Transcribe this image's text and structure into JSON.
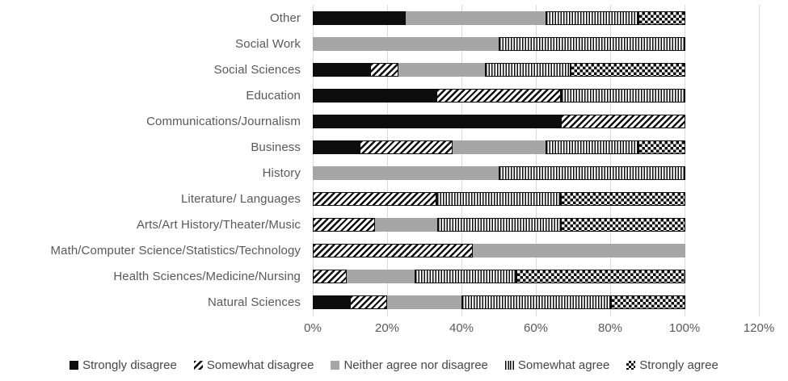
{
  "chart_data": {
    "type": "bar",
    "orientation": "horizontal",
    "stacked": true,
    "title": "",
    "xlabel": "",
    "ylabel": "",
    "x_axis": {
      "ticks": [
        "0%",
        "20%",
        "40%",
        "60%",
        "80%",
        "100%",
        "120%"
      ],
      "min": 0,
      "max": 120,
      "tick_step": 20,
      "unit": "percent"
    },
    "grid": true,
    "legend_position": "bottom",
    "categories": [
      "Other",
      "Social Work",
      "Social Sciences",
      "Education",
      "Communications/Journalism",
      "Business",
      "History",
      "Literature/ Languages",
      "Arts/Art History/Theater/Music",
      "Math/Computer Science/Statistics/Technology",
      "Health Sciences/Medicine/Nursing",
      "Natural Sciences"
    ],
    "series": [
      {
        "name": "Strongly disagree",
        "pattern": "solid-black",
        "values": [
          25,
          0,
          15.4,
          33.3,
          66.7,
          12.5,
          0,
          0,
          0,
          0,
          0,
          10
        ]
      },
      {
        "name": "Somewhat disagree",
        "pattern": "diagonal-stripes",
        "values": [
          0,
          0,
          7.7,
          33.3,
          33.3,
          25,
          0,
          33.3,
          16.7,
          42.9,
          9.1,
          10
        ]
      },
      {
        "name": "Neither agree nor disagree",
        "pattern": "solid-gray",
        "values": [
          37.5,
          50,
          23.1,
          0,
          0,
          25,
          50,
          0,
          16.7,
          57.1,
          18.2,
          20
        ]
      },
      {
        "name": "Somewhat agree",
        "pattern": "vertical-stripes",
        "values": [
          25,
          50,
          23.1,
          33.4,
          0,
          25,
          50,
          33.3,
          33.3,
          0,
          27.3,
          40
        ]
      },
      {
        "name": "Strongly agree",
        "pattern": "checkerboard",
        "values": [
          12.5,
          0,
          30.7,
          0,
          0,
          12.5,
          0,
          33.4,
          33.3,
          0,
          45.4,
          20
        ]
      }
    ],
    "colors": {
      "series_black": "#0d0d0d",
      "series_gray": "#a6a6a6",
      "gridline": "#d9d9d9",
      "axis_text": "#595959",
      "legend_text": "#474747",
      "background": "#ffffff"
    }
  }
}
